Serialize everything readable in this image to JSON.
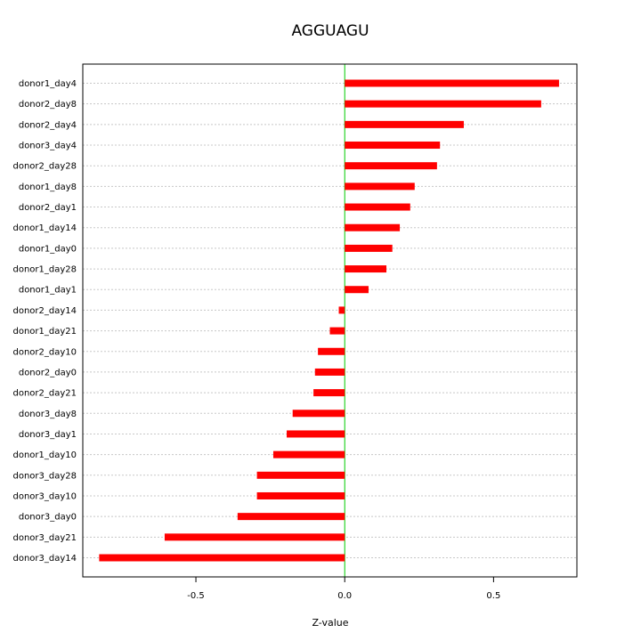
{
  "chart_data": {
    "type": "bar",
    "orientation": "horizontal",
    "title": "AGGUAGU",
    "xlabel": "Z-value",
    "ylabel": "",
    "xlim": [
      -0.88,
      0.78
    ],
    "xticks": [
      -0.5,
      0.0,
      0.5
    ],
    "xtick_labels": [
      "-0.5",
      "0.0",
      "0.5"
    ],
    "grid": "horizontal dashed",
    "reference_line": 0,
    "colors": {
      "bar": "#ff0000",
      "zero_line": "#00cc00",
      "grid": "#c8c8c8",
      "frame": "#000000"
    },
    "categories": [
      "donor1_day4",
      "donor2_day8",
      "donor2_day4",
      "donor3_day4",
      "donor2_day28",
      "donor1_day8",
      "donor2_day1",
      "donor1_day14",
      "donor1_day0",
      "donor1_day28",
      "donor1_day1",
      "donor2_day14",
      "donor1_day21",
      "donor2_day10",
      "donor2_day0",
      "donor2_day21",
      "donor3_day8",
      "donor3_day1",
      "donor1_day10",
      "donor3_day28",
      "donor3_day10",
      "donor3_day0",
      "donor3_day21",
      "donor3_day14"
    ],
    "values": [
      0.72,
      0.66,
      0.4,
      0.32,
      0.31,
      0.235,
      0.22,
      0.185,
      0.16,
      0.14,
      0.08,
      -0.02,
      -0.05,
      -0.09,
      -0.1,
      -0.105,
      -0.175,
      -0.195,
      -0.24,
      -0.295,
      -0.295,
      -0.36,
      -0.605,
      -0.825
    ]
  }
}
